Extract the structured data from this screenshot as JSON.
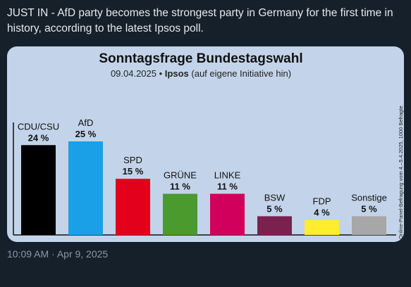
{
  "tweet": {
    "text": "JUST IN - AfD party becomes the strongest party in Germany for the first time in history, according to the latest Ipsos poll.",
    "timestamp": "10:09 AM · Apr 9, 2025"
  },
  "chart_data": {
    "type": "bar",
    "title": "Sonntagsfrage Bundestagswahl",
    "subtitle_date": "09.04.2025 •",
    "subtitle_source": "Ipsos",
    "subtitle_note": "(auf eigene Initiative hin)",
    "side_note": "Online-Panel-Befragung vom 4.–5.4.2025, 1000 Befragte",
    "categories": [
      "CDU/CSU",
      "AfD",
      "SPD",
      "GRÜNE",
      "LINKE",
      "BSW",
      "FDP",
      "Sonstige"
    ],
    "values": [
      24,
      25,
      15,
      11,
      11,
      5,
      4,
      5
    ],
    "value_labels": [
      "24 %",
      "25 %",
      "15 %",
      "11 %",
      "11 %",
      "5 %",
      "4 %",
      "5 %"
    ],
    "colors": [
      "#000000",
      "#1aa0e6",
      "#e3001b",
      "#4a9a2e",
      "#d1005c",
      "#7b2150",
      "#ffed2e",
      "#a7a7a7"
    ],
    "ylim": [
      0,
      25
    ]
  }
}
